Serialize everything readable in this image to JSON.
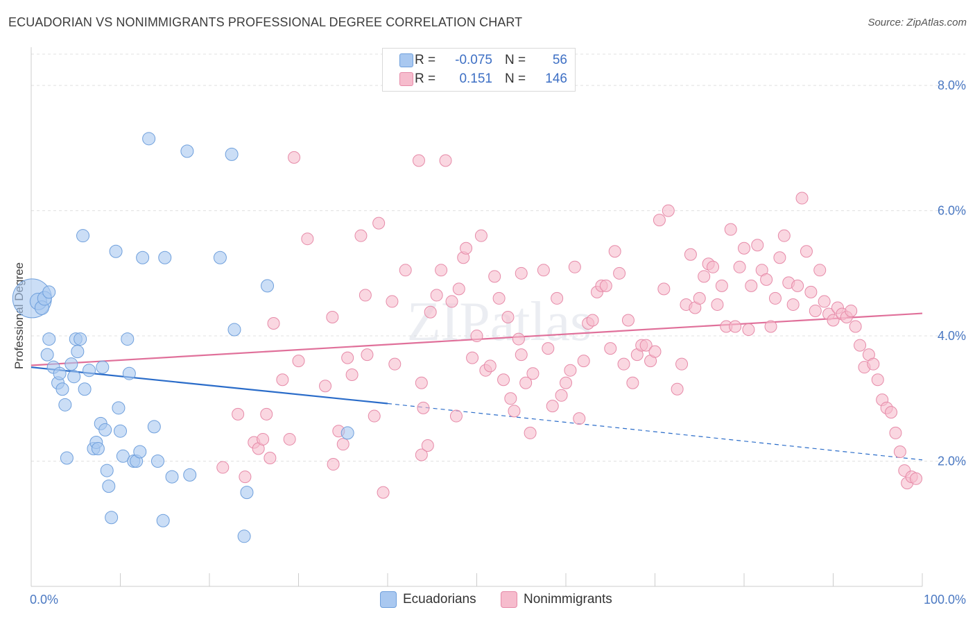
{
  "title": "ECUADORIAN VS NONIMMIGRANTS PROFESSIONAL DEGREE CORRELATION CHART",
  "source": "Source: ZipAtlas.com",
  "watermark": "ZIPatlas",
  "legend": {
    "rows": [
      {
        "r_label": "R =",
        "r_value": "-0.075",
        "n_label": "N =",
        "n_value": "56"
      },
      {
        "r_label": "R =",
        "r_value": "0.151",
        "n_label": "N =",
        "n_value": "146"
      }
    ]
  },
  "colors": {
    "blue_fill": "#a9c8f0",
    "blue_stroke": "#6e9fdc",
    "blue_line": "#2a6cc9",
    "pink_fill": "#f6bccd",
    "pink_stroke": "#e68aa8",
    "pink_line": "#e0709a",
    "grid": "#e0e0e0",
    "tick_text": "#4a78c2"
  },
  "chart_data": {
    "type": "scatter",
    "title": "ECUADORIAN VS NONIMMIGRANTS PROFESSIONAL DEGREE CORRELATION CHART",
    "ylabel": "Professional Degree",
    "xlabel": "",
    "xlim": [
      0,
      100
    ],
    "ylim": [
      0,
      8.5
    ],
    "x_tick_labels": [
      "0.0%",
      "100.0%"
    ],
    "y_ticks": [
      2,
      4,
      6,
      8
    ],
    "y_tick_labels": [
      "2.0%",
      "4.0%",
      "6.0%",
      "8.0%"
    ],
    "grid": true,
    "legend_position": "top-center",
    "series": [
      {
        "name": "Ecuadorians",
        "color": "#a9c8f0",
        "trend": {
          "x0": 0,
          "y0": 3.5,
          "x1": 40,
          "y1": 2.92,
          "dash_to_x": 100,
          "dash_to_y": 2.02
        },
        "points": [
          [
            0.1,
            4.6,
            28
          ],
          [
            0.8,
            4.55,
            12
          ],
          [
            1.2,
            4.45,
            10
          ],
          [
            1.5,
            4.6,
            10
          ],
          [
            2.0,
            4.7,
            9
          ],
          [
            1.8,
            3.7,
            9
          ],
          [
            2.0,
            3.95,
            9
          ],
          [
            2.5,
            3.5,
            9
          ],
          [
            3.0,
            3.25,
            9
          ],
          [
            3.2,
            3.4,
            9
          ],
          [
            3.5,
            3.15,
            9
          ],
          [
            3.8,
            2.9,
            9
          ],
          [
            4.0,
            2.05,
            9
          ],
          [
            4.5,
            3.55,
            9
          ],
          [
            4.8,
            3.35,
            9
          ],
          [
            5.0,
            3.95,
            9
          ],
          [
            5.2,
            3.75,
            9
          ],
          [
            5.5,
            3.95,
            9
          ],
          [
            5.8,
            5.6,
            9
          ],
          [
            6.0,
            3.15,
            9
          ],
          [
            6.5,
            3.45,
            9
          ],
          [
            7.0,
            2.2,
            9
          ],
          [
            7.3,
            2.3,
            9
          ],
          [
            7.5,
            2.2,
            9
          ],
          [
            7.8,
            2.6,
            9
          ],
          [
            8.0,
            3.5,
            9
          ],
          [
            8.3,
            2.5,
            9
          ],
          [
            8.5,
            1.85,
            9
          ],
          [
            8.7,
            1.6,
            9
          ],
          [
            9.0,
            1.1,
            9
          ],
          [
            9.5,
            5.35,
            9
          ],
          [
            9.8,
            2.85,
            9
          ],
          [
            10.0,
            2.48,
            9
          ],
          [
            10.3,
            2.08,
            9
          ],
          [
            10.8,
            3.95,
            9
          ],
          [
            11.0,
            3.4,
            9
          ],
          [
            11.5,
            2.0,
            9
          ],
          [
            11.8,
            2.0,
            9
          ],
          [
            12.2,
            2.15,
            9
          ],
          [
            12.5,
            5.25,
            9
          ],
          [
            13.2,
            7.15,
            9
          ],
          [
            13.8,
            2.55,
            9
          ],
          [
            14.2,
            2.0,
            9
          ],
          [
            14.8,
            1.05,
            9
          ],
          [
            15.0,
            5.25,
            9
          ],
          [
            15.8,
            1.75,
            9
          ],
          [
            17.5,
            6.95,
            9
          ],
          [
            17.8,
            1.78,
            9
          ],
          [
            21.2,
            5.25,
            9
          ],
          [
            22.5,
            6.9,
            9
          ],
          [
            22.8,
            4.1,
            9
          ],
          [
            23.9,
            0.8,
            9
          ],
          [
            24.2,
            1.5,
            9
          ],
          [
            26.5,
            4.8,
            9
          ],
          [
            35.5,
            2.45,
            9
          ]
        ]
      },
      {
        "name": "Nonimmigrants",
        "color": "#f6bccd",
        "trend": {
          "x0": 0,
          "y0": 3.53,
          "x1": 100,
          "y1": 4.36
        },
        "points": [
          [
            21.5,
            1.9
          ],
          [
            23.2,
            2.75
          ],
          [
            24.0,
            1.75
          ],
          [
            25.0,
            2.3
          ],
          [
            25.5,
            2.2
          ],
          [
            26.0,
            2.35
          ],
          [
            26.4,
            2.75
          ],
          [
            26.8,
            2.05
          ],
          [
            27.2,
            4.2
          ],
          [
            28.2,
            3.3
          ],
          [
            29.0,
            2.35
          ],
          [
            29.5,
            6.85
          ],
          [
            30.0,
            3.6
          ],
          [
            31.0,
            5.55
          ],
          [
            33.0,
            3.2
          ],
          [
            33.8,
            4.3
          ],
          [
            33.9,
            1.95
          ],
          [
            34.5,
            2.48
          ],
          [
            35.0,
            2.27
          ],
          [
            35.5,
            3.65
          ],
          [
            36.0,
            3.38
          ],
          [
            37.0,
            5.6
          ],
          [
            37.5,
            4.65
          ],
          [
            37.7,
            3.7
          ],
          [
            38.5,
            2.72
          ],
          [
            39.0,
            5.8
          ],
          [
            39.5,
            1.5
          ],
          [
            40.5,
            4.55
          ],
          [
            40.8,
            3.55
          ],
          [
            42.0,
            5.05
          ],
          [
            43.5,
            6.8
          ],
          [
            43.8,
            3.25
          ],
          [
            43.8,
            2.1
          ],
          [
            44.5,
            2.25
          ],
          [
            44.0,
            2.85
          ],
          [
            45.5,
            4.65
          ],
          [
            46.0,
            5.05
          ],
          [
            46.5,
            6.8
          ],
          [
            47.2,
            4.55
          ],
          [
            47.7,
            2.72
          ],
          [
            48.0,
            4.75
          ],
          [
            48.5,
            5.25
          ],
          [
            48.8,
            5.4
          ],
          [
            49.5,
            3.65
          ],
          [
            50.0,
            4.0
          ],
          [
            50.5,
            5.6
          ],
          [
            51.0,
            3.45
          ],
          [
            51.5,
            3.52
          ],
          [
            52.0,
            4.95
          ],
          [
            52.5,
            4.6
          ],
          [
            53.0,
            3.3
          ],
          [
            53.5,
            4.3
          ],
          [
            53.8,
            3.0
          ],
          [
            54.2,
            2.8
          ],
          [
            54.7,
            3.95
          ],
          [
            55.0,
            3.7
          ],
          [
            55.5,
            3.25
          ],
          [
            56.0,
            2.45
          ],
          [
            56.3,
            3.4
          ],
          [
            57.5,
            5.05
          ],
          [
            58.0,
            3.8
          ],
          [
            58.5,
            2.88
          ],
          [
            59.0,
            4.6
          ],
          [
            59.5,
            3.05
          ],
          [
            60.0,
            3.25
          ],
          [
            60.5,
            3.45
          ],
          [
            61.0,
            5.1
          ],
          [
            61.5,
            2.68
          ],
          [
            62.0,
            3.6
          ],
          [
            62.5,
            4.2
          ],
          [
            63.0,
            4.25
          ],
          [
            63.5,
            4.7
          ],
          [
            64.0,
            4.8
          ],
          [
            64.5,
            4.8
          ],
          [
            65.0,
            3.8
          ],
          [
            65.5,
            5.35
          ],
          [
            66.0,
            5.0
          ],
          [
            66.5,
            3.55
          ],
          [
            67.0,
            4.25
          ],
          [
            67.5,
            3.25
          ],
          [
            68.0,
            3.7
          ],
          [
            68.5,
            3.85
          ],
          [
            69.0,
            3.85
          ],
          [
            69.5,
            3.6
          ],
          [
            70.0,
            3.75
          ],
          [
            70.5,
            5.85
          ],
          [
            71.0,
            4.75
          ],
          [
            71.5,
            6.0
          ],
          [
            72.5,
            3.15
          ],
          [
            73.0,
            3.55
          ],
          [
            73.5,
            4.5
          ],
          [
            74.0,
            5.3
          ],
          [
            74.5,
            4.45
          ],
          [
            75.0,
            4.6
          ],
          [
            75.5,
            4.95
          ],
          [
            76.0,
            5.15
          ],
          [
            76.5,
            5.1
          ],
          [
            77.0,
            4.5
          ],
          [
            77.5,
            4.8
          ],
          [
            78.0,
            4.15
          ],
          [
            78.5,
            5.7
          ],
          [
            79.0,
            4.15
          ],
          [
            79.5,
            5.1
          ],
          [
            80.0,
            5.4
          ],
          [
            80.5,
            4.1
          ],
          [
            80.8,
            4.8
          ],
          [
            81.5,
            5.45
          ],
          [
            82.0,
            5.05
          ],
          [
            82.5,
            4.9
          ],
          [
            83.0,
            4.15
          ],
          [
            83.5,
            4.6
          ],
          [
            84.0,
            5.25
          ],
          [
            84.5,
            5.6
          ],
          [
            85.0,
            4.85
          ],
          [
            85.5,
            4.5
          ],
          [
            86.0,
            4.8
          ],
          [
            86.5,
            6.2
          ],
          [
            87.0,
            5.35
          ],
          [
            87.5,
            4.7
          ],
          [
            88.0,
            4.4
          ],
          [
            88.5,
            5.05
          ],
          [
            89.0,
            4.55
          ],
          [
            89.5,
            4.35
          ],
          [
            90.0,
            4.25
          ],
          [
            90.5,
            4.45
          ],
          [
            91.0,
            4.35
          ],
          [
            91.5,
            4.3
          ],
          [
            92.0,
            4.4
          ],
          [
            92.5,
            4.15
          ],
          [
            93.0,
            3.85
          ],
          [
            93.5,
            3.5
          ],
          [
            94.0,
            3.7
          ],
          [
            94.5,
            3.55
          ],
          [
            95.0,
            3.3
          ],
          [
            95.5,
            2.98
          ],
          [
            96.0,
            2.85
          ],
          [
            96.5,
            2.78
          ],
          [
            97.0,
            2.45
          ],
          [
            97.5,
            2.15
          ],
          [
            98.0,
            1.85
          ],
          [
            98.3,
            1.65
          ],
          [
            98.8,
            1.75
          ],
          [
            99.3,
            1.72
          ],
          [
            55.0,
            5.0
          ],
          [
            44.8,
            4.38
          ]
        ]
      }
    ]
  }
}
